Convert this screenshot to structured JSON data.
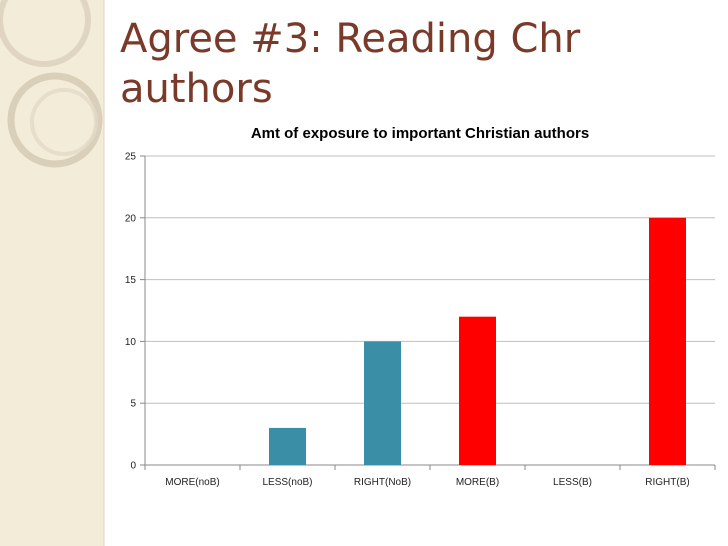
{
  "slide": {
    "title": "Agree #3: Reading Chr authors"
  },
  "colors": {
    "title": "#7a3a2a",
    "noB_series": "#3a8fa6",
    "B_series": "#ff0000",
    "gridline": "#bfbfbf"
  },
  "chart_data": {
    "type": "bar",
    "title": "Amt of exposure to important Christian authors",
    "xlabel": "",
    "ylabel": "",
    "categories": [
      "MORE(noB)",
      "LESS(noB)",
      "RIGHT(NoB)",
      "MORE(B)",
      "LESS(B)",
      "RIGHT(B)"
    ],
    "values": [
      0,
      3,
      10,
      12,
      0,
      20
    ],
    "bar_colors": [
      "#3a8fa6",
      "#3a8fa6",
      "#3a8fa6",
      "#ff0000",
      "#ff0000",
      "#ff0000"
    ],
    "ylim": [
      0,
      25
    ],
    "yticks": [
      0,
      5,
      10,
      15,
      20,
      25
    ],
    "grid": true,
    "legend": "none"
  }
}
